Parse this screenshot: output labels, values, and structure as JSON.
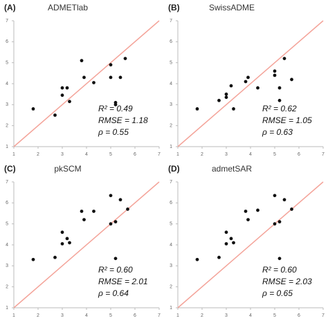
{
  "chart_data": [
    {
      "type": "scatter",
      "panel": "(A)",
      "title": "ADMETlab",
      "color": "#111111",
      "identity_color": "#f4a49a",
      "x": [
        1.8,
        2.7,
        3.0,
        3.2,
        3.0,
        3.3,
        3.8,
        3.9,
        4.3,
        5.0,
        5.0,
        5.2,
        5.2,
        5.4,
        5.6
      ],
      "y": [
        2.8,
        2.5,
        3.8,
        3.8,
        3.45,
        3.15,
        5.1,
        4.3,
        4.05,
        4.9,
        4.3,
        3.1,
        3.0,
        4.3,
        5.2
      ],
      "xlim": [
        1,
        7
      ],
      "ylim": [
        1,
        7
      ],
      "xticks": [
        1,
        2,
        3,
        4,
        5,
        6,
        7
      ],
      "yticks": [
        1,
        2,
        3,
        4,
        5,
        6,
        7
      ],
      "annotations": [
        "R² = 0.49",
        "RMSE = 1.18",
        "ρ = 0.55"
      ]
    },
    {
      "type": "scatter",
      "panel": "(B)",
      "title": "SwissADME",
      "color": "#111111",
      "identity_color": "#f4a49a",
      "x": [
        1.8,
        2.7,
        3.0,
        3.0,
        3.2,
        3.3,
        3.8,
        3.9,
        4.3,
        5.0,
        5.0,
        5.2,
        5.2,
        5.4,
        5.7
      ],
      "y": [
        2.8,
        3.2,
        3.5,
        3.35,
        3.9,
        2.8,
        4.1,
        4.3,
        3.8,
        4.6,
        4.4,
        3.8,
        3.2,
        5.2,
        4.2
      ],
      "xlim": [
        1,
        7
      ],
      "ylim": [
        1,
        7
      ],
      "xticks": [
        1,
        2,
        3,
        4,
        5,
        6,
        7
      ],
      "yticks": [
        1,
        2,
        3,
        4,
        5,
        6,
        7
      ],
      "annotations": [
        "R² = 0.62",
        "RMSE = 1.05",
        "ρ = 0.63"
      ]
    },
    {
      "type": "scatter",
      "panel": "(C)",
      "title": "pkSCM",
      "color": "#111111",
      "identity_color": "#f4a49a",
      "x": [
        1.8,
        2.7,
        3.0,
        3.0,
        3.2,
        3.3,
        3.8,
        3.9,
        4.3,
        5.0,
        5.0,
        5.2,
        5.2,
        5.4,
        5.7
      ],
      "y": [
        3.3,
        3.4,
        4.6,
        4.05,
        4.3,
        4.1,
        5.6,
        5.2,
        5.6,
        6.35,
        5.0,
        5.1,
        3.35,
        6.15,
        5.7
      ],
      "xlim": [
        1,
        7
      ],
      "ylim": [
        1,
        7
      ],
      "xticks": [
        1,
        2,
        3,
        4,
        5,
        6,
        7
      ],
      "yticks": [
        1,
        2,
        3,
        4,
        5,
        6,
        7
      ],
      "annotations": [
        "R² = 0.60",
        "RMSE = 2.01",
        "ρ = 0.64"
      ]
    },
    {
      "type": "scatter",
      "panel": "(D)",
      "title": "admetSAR",
      "color": "#111111",
      "identity_color": "#f4a49a",
      "x": [
        1.8,
        2.7,
        3.0,
        3.0,
        3.2,
        3.3,
        3.8,
        3.9,
        4.3,
        5.0,
        5.0,
        5.2,
        5.2,
        5.4,
        5.7
      ],
      "y": [
        3.3,
        3.4,
        4.6,
        4.05,
        4.3,
        4.1,
        5.6,
        5.2,
        5.65,
        6.35,
        5.0,
        5.1,
        3.35,
        6.15,
        5.7
      ],
      "xlim": [
        1,
        7
      ],
      "ylim": [
        1,
        7
      ],
      "xticks": [
        1,
        2,
        3,
        4,
        5,
        6,
        7
      ],
      "yticks": [
        1,
        2,
        3,
        4,
        5,
        6,
        7
      ],
      "annotations": [
        "R² = 0.60",
        "RMSE = 2.03",
        "ρ = 0.65"
      ]
    }
  ]
}
